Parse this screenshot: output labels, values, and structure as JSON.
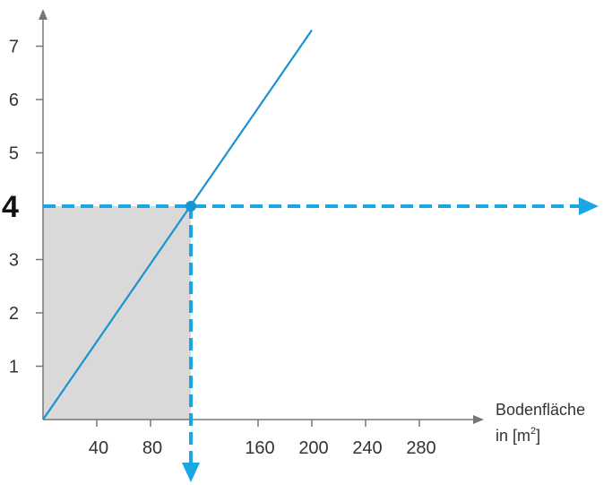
{
  "colors": {
    "line": "#1a93d1",
    "guide": "#1aa6e3",
    "area": "#d9d9d9",
    "axis": "#777777",
    "text": "#333333"
  },
  "chart_data": {
    "type": "line",
    "title": "",
    "xlabel": "Bodenfläche",
    "xlabel_unit_line": "in [m",
    "xlabel_unit_sup": "2",
    "xlabel_unit_end": "]",
    "ylabel": "",
    "xlim": [
      0,
      300
    ],
    "ylim": [
      0,
      7.6
    ],
    "x_ticks": [
      40,
      80,
      160,
      200,
      240,
      280
    ],
    "x_tick_labels": [
      "40",
      "80",
      "160",
      "200",
      "240",
      "280"
    ],
    "y_ticks": [
      1,
      2,
      3,
      5,
      6,
      7
    ],
    "y_tick_labels": [
      "1",
      "2",
      "3",
      "5",
      "6",
      "7"
    ],
    "grid": false,
    "series": [
      {
        "x": [
          0,
          200
        ],
        "y": [
          0,
          7.3
        ]
      }
    ],
    "highlight": {
      "x": 110,
      "y": 4,
      "y_label": "4",
      "shaded_region": true,
      "arrows": [
        "right",
        "down"
      ]
    }
  }
}
